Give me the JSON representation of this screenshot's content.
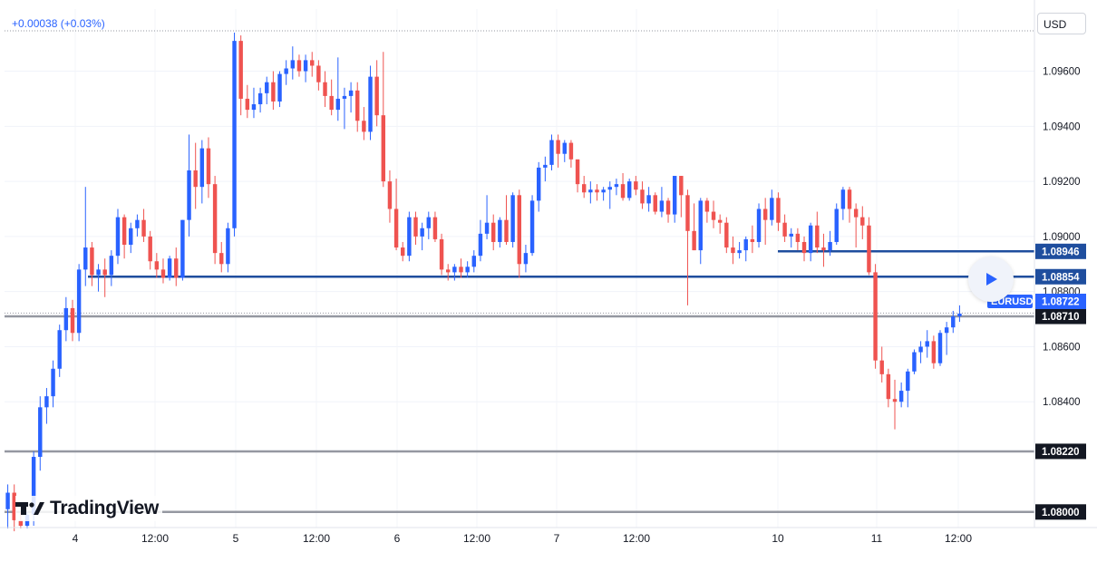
{
  "header": {
    "change": "+0.00038 (+0.03%)",
    "currency": "USD"
  },
  "logo": {
    "text": "TradingView",
    "icon": "tradingview-logo-icon"
  },
  "play_icon": "play-icon",
  "colors": {
    "up": "#2962ff",
    "down": "#ef5350",
    "level_blue": "#1f4e9e",
    "level_grey": "#9598a1",
    "price_dotted": "#9598a1"
  },
  "chart_data": {
    "type": "candlestick",
    "symbol": "EURUSD",
    "ylim": [
      1.0795,
      1.0974
    ],
    "y_ticks": [
      "1.09600",
      "1.09400",
      "1.09200",
      "1.09000",
      "1.08800",
      "1.08600",
      "1.08400"
    ],
    "x_ticks": [
      "4",
      "12:00",
      "5",
      "12:00",
      "6",
      "12:00",
      "7",
      "12:00",
      "10",
      "11",
      "12:00"
    ],
    "last_price": "1.08722",
    "levels": [
      {
        "price": 1.08946,
        "label": "1.08946",
        "color": "blue",
        "start": "10"
      },
      {
        "price": 1.08854,
        "label": "1.08854",
        "color": "blue",
        "start": "4"
      },
      {
        "price": 1.0871,
        "label": "1.08710",
        "color": "grey",
        "start": ""
      },
      {
        "price": 1.0822,
        "label": "1.08220",
        "color": "grey",
        "start": ""
      },
      {
        "price": 1.08,
        "label": "1.08000",
        "color": "grey",
        "start": ""
      }
    ],
    "ohlc": [
      [
        1.0801,
        1.081,
        1.0794,
        1.0807
      ],
      [
        1.0807,
        1.081,
        1.0793,
        1.0797
      ],
      [
        1.0797,
        1.08,
        1.0794,
        1.0795
      ],
      [
        1.0795,
        1.08,
        1.0794,
        1.0799
      ],
      [
        1.0799,
        1.0822,
        1.0795,
        1.082
      ],
      [
        1.082,
        1.0842,
        1.0815,
        1.0838
      ],
      [
        1.0838,
        1.0845,
        1.0832,
        1.0842
      ],
      [
        1.0842,
        1.0855,
        1.0838,
        1.0852
      ],
      [
        1.0852,
        1.0868,
        1.0849,
        1.0866
      ],
      [
        1.0866,
        1.0878,
        1.0862,
        1.0874
      ],
      [
        1.0874,
        1.0877,
        1.0862,
        1.0865
      ],
      [
        1.0865,
        1.089,
        1.0862,
        1.0888
      ],
      [
        1.0888,
        1.0918,
        1.0882,
        1.0896
      ],
      [
        1.0896,
        1.0898,
        1.0882,
        1.0886
      ],
      [
        1.0886,
        1.089,
        1.088,
        1.0888
      ],
      [
        1.0888,
        1.0892,
        1.0878,
        1.0886
      ],
      [
        1.0886,
        1.0895,
        1.0882,
        1.0893
      ],
      [
        1.0893,
        1.091,
        1.089,
        1.0907
      ],
      [
        1.0907,
        1.0908,
        1.0892,
        1.0897
      ],
      [
        1.0897,
        1.0905,
        1.0894,
        1.0903
      ],
      [
        1.0903,
        1.0908,
        1.09,
        1.0906
      ],
      [
        1.0906,
        1.091,
        1.0898,
        1.09
      ],
      [
        1.09,
        1.0902,
        1.0888,
        1.0891
      ],
      [
        1.0891,
        1.0894,
        1.0885,
        1.0888
      ],
      [
        1.0888,
        1.0892,
        1.0883,
        1.0885
      ],
      [
        1.0885,
        1.0893,
        1.0884,
        1.0892
      ],
      [
        1.0892,
        1.0896,
        1.0882,
        1.0885
      ],
      [
        1.0885,
        1.0906,
        1.0884,
        1.0906
      ],
      [
        1.0906,
        1.0937,
        1.09,
        1.0924
      ],
      [
        1.0924,
        1.0934,
        1.091,
        1.0918
      ],
      [
        1.0918,
        1.0935,
        1.0912,
        1.0932
      ],
      [
        1.0932,
        1.0936,
        1.0914,
        1.0919
      ],
      [
        1.0919,
        1.0922,
        1.089,
        1.0894
      ],
      [
        1.0894,
        1.0898,
        1.0887,
        1.089
      ],
      [
        1.089,
        1.0905,
        1.0887,
        1.0903
      ],
      [
        1.0903,
        1.0974,
        1.09,
        1.0971
      ],
      [
        1.0971,
        1.0973,
        1.0944,
        1.095
      ],
      [
        1.095,
        1.0955,
        1.0943,
        1.0946
      ],
      [
        1.0946,
        1.0954,
        1.0943,
        1.0948
      ],
      [
        1.0948,
        1.0954,
        1.0945,
        1.0952
      ],
      [
        1.0952,
        1.0958,
        1.0948,
        1.0956
      ],
      [
        1.0956,
        1.096,
        1.0946,
        1.0949
      ],
      [
        1.0949,
        1.096,
        1.0947,
        1.0959
      ],
      [
        1.0959,
        1.0964,
        1.0955,
        1.0961
      ],
      [
        1.0961,
        1.0969,
        1.0957,
        1.0964
      ],
      [
        1.0964,
        1.0966,
        1.0958,
        1.096
      ],
      [
        1.096,
        1.0966,
        1.0956,
        1.0964
      ],
      [
        1.0964,
        1.0967,
        1.0958,
        1.0962
      ],
      [
        1.0962,
        1.0964,
        1.0953,
        1.0956
      ],
      [
        1.0956,
        1.096,
        1.0947,
        1.0951
      ],
      [
        1.0951,
        1.0957,
        1.0944,
        1.0946
      ],
      [
        1.0946,
        1.0965,
        1.0942,
        1.095
      ],
      [
        1.095,
        1.0954,
        1.0939,
        1.0951
      ],
      [
        1.0951,
        1.0956,
        1.0945,
        1.0953
      ],
      [
        1.0953,
        1.0956,
        1.0938,
        1.0942
      ],
      [
        1.0942,
        1.0947,
        1.0935,
        1.0938
      ],
      [
        1.0938,
        1.0962,
        1.0935,
        1.0958
      ],
      [
        1.0958,
        1.0964,
        1.094,
        1.0944
      ],
      [
        1.0944,
        1.0967,
        1.0918,
        1.092
      ],
      [
        1.092,
        1.0924,
        1.0905,
        1.091
      ],
      [
        1.091,
        1.0921,
        1.0895,
        1.0896
      ],
      [
        1.0896,
        1.0898,
        1.0891,
        1.0893
      ],
      [
        1.0893,
        1.0909,
        1.0891,
        1.0907
      ],
      [
        1.0907,
        1.0909,
        1.0897,
        1.09
      ],
      [
        1.09,
        1.0905,
        1.0895,
        1.0903
      ],
      [
        1.0903,
        1.0909,
        1.0899,
        1.0907
      ],
      [
        1.0907,
        1.0909,
        1.0898,
        1.0899
      ],
      [
        1.0899,
        1.0901,
        1.0886,
        1.0888
      ],
      [
        1.0888,
        1.089,
        1.0884,
        1.0887
      ],
      [
        1.0887,
        1.089,
        1.0884,
        1.0889
      ],
      [
        1.0889,
        1.0892,
        1.0885,
        1.0887
      ],
      [
        1.0887,
        1.0891,
        1.0885,
        1.0889
      ],
      [
        1.0889,
        1.0895,
        1.0887,
        1.0893
      ],
      [
        1.0893,
        1.0906,
        1.0891,
        1.0901
      ],
      [
        1.0901,
        1.0915,
        1.0899,
        1.0905
      ],
      [
        1.0905,
        1.0908,
        1.0895,
        1.0898
      ],
      [
        1.0898,
        1.0907,
        1.0896,
        1.0906
      ],
      [
        1.0906,
        1.0915,
        1.0897,
        1.0898
      ],
      [
        1.0898,
        1.0916,
        1.0896,
        1.0915
      ],
      [
        1.0915,
        1.0917,
        1.0885,
        1.089
      ],
      [
        1.089,
        1.0897,
        1.0887,
        1.0894
      ],
      [
        1.0894,
        1.0915,
        1.0893,
        1.0913
      ],
      [
        1.0913,
        1.0927,
        1.0909,
        1.0925
      ],
      [
        1.0925,
        1.0929,
        1.092,
        1.0926
      ],
      [
        1.0926,
        1.0937,
        1.0924,
        1.0935
      ],
      [
        1.0935,
        1.0937,
        1.0925,
        1.093
      ],
      [
        1.093,
        1.0935,
        1.0927,
        1.0934
      ],
      [
        1.0934,
        1.0935,
        1.0925,
        1.0928
      ],
      [
        1.0928,
        1.0927,
        1.0916,
        1.0919
      ],
      [
        1.0919,
        1.0922,
        1.0914,
        1.0916
      ],
      [
        1.0916,
        1.092,
        1.0912,
        1.0917
      ],
      [
        1.0917,
        1.0919,
        1.0913,
        1.0916
      ],
      [
        1.0916,
        1.0918,
        1.0913,
        1.0917
      ],
      [
        1.0917,
        1.092,
        1.091,
        1.0918
      ],
      [
        1.0918,
        1.0921,
        1.0915,
        1.0919
      ],
      [
        1.0919,
        1.0923,
        1.0913,
        1.0914
      ],
      [
        1.0914,
        1.0921,
        1.0913,
        1.092
      ],
      [
        1.092,
        1.0922,
        1.0915,
        1.0917
      ],
      [
        1.0917,
        1.092,
        1.091,
        1.0912
      ],
      [
        1.0912,
        1.0918,
        1.0909,
        1.0915
      ],
      [
        1.0915,
        1.0916,
        1.0908,
        1.0909
      ],
      [
        1.0909,
        1.0918,
        1.0907,
        1.0913
      ],
      [
        1.0913,
        1.0914,
        1.0905,
        1.0908
      ],
      [
        1.0908,
        1.0922,
        1.0905,
        1.0922
      ],
      [
        1.0922,
        1.0922,
        1.0907,
        1.0915
      ],
      [
        1.0915,
        1.0917,
        1.0875,
        1.0902
      ],
      [
        1.0902,
        1.0912,
        1.0895,
        1.0895
      ],
      [
        1.0895,
        1.0914,
        1.089,
        1.0913
      ],
      [
        1.0913,
        1.0914,
        1.0905,
        1.0909
      ],
      [
        1.0909,
        1.0913,
        1.0903,
        1.0906
      ],
      [
        1.0906,
        1.0908,
        1.0901,
        1.0905
      ],
      [
        1.0905,
        1.0907,
        1.0894,
        1.0896
      ],
      [
        1.0896,
        1.09,
        1.089,
        1.0894
      ],
      [
        1.0894,
        1.0898,
        1.0892,
        1.0895
      ],
      [
        1.0895,
        1.09,
        1.0891,
        1.0899
      ],
      [
        1.0899,
        1.0904,
        1.0894,
        1.0898
      ],
      [
        1.0898,
        1.0912,
        1.0896,
        1.091
      ],
      [
        1.091,
        1.0914,
        1.0897,
        1.0906
      ],
      [
        1.0906,
        1.0917,
        1.0904,
        1.0914
      ],
      [
        1.0914,
        1.0916,
        1.0902,
        1.0905
      ],
      [
        1.0905,
        1.0908,
        1.0898,
        1.09
      ],
      [
        1.09,
        1.0903,
        1.0896,
        1.0901
      ],
      [
        1.0901,
        1.0903,
        1.0895,
        1.0898
      ],
      [
        1.0898,
        1.09,
        1.0891,
        1.0894
      ],
      [
        1.0894,
        1.0905,
        1.0891,
        1.0904
      ],
      [
        1.0904,
        1.0909,
        1.0894,
        1.0896
      ],
      [
        1.0896,
        1.0901,
        1.0889,
        1.0895
      ],
      [
        1.0895,
        1.0902,
        1.0893,
        1.0898
      ],
      [
        1.0898,
        1.0912,
        1.0897,
        1.091
      ],
      [
        1.091,
        1.0918,
        1.0906,
        1.0917
      ],
      [
        1.0917,
        1.0918,
        1.0905,
        1.091
      ],
      [
        1.091,
        1.0912,
        1.0896,
        1.0907
      ],
      [
        1.0907,
        1.0911,
        1.0899,
        1.0904
      ],
      [
        1.0904,
        1.0907,
        1.0886,
        1.0887
      ],
      [
        1.0887,
        1.089,
        1.0852,
        1.0855
      ],
      [
        1.0855,
        1.086,
        1.0847,
        1.085
      ],
      [
        1.085,
        1.0852,
        1.0838,
        1.0841
      ],
      [
        1.0841,
        1.0848,
        1.083,
        1.084
      ],
      [
        1.084,
        1.0847,
        1.0838,
        1.0844
      ],
      [
        1.0844,
        1.0852,
        1.0838,
        1.0851
      ],
      [
        1.0851,
        1.0859,
        1.085,
        1.0858
      ],
      [
        1.0858,
        1.0862,
        1.0854,
        1.086
      ],
      [
        1.086,
        1.0866,
        1.0856,
        1.0862
      ],
      [
        1.0862,
        1.0864,
        1.0852,
        1.0854
      ],
      [
        1.0854,
        1.0866,
        1.0853,
        1.0865
      ],
      [
        1.0865,
        1.0869,
        1.0857,
        1.0867
      ],
      [
        1.0867,
        1.0873,
        1.0865,
        1.0871
      ],
      [
        1.0871,
        1.0875,
        1.0869,
        1.0872
      ]
    ]
  }
}
